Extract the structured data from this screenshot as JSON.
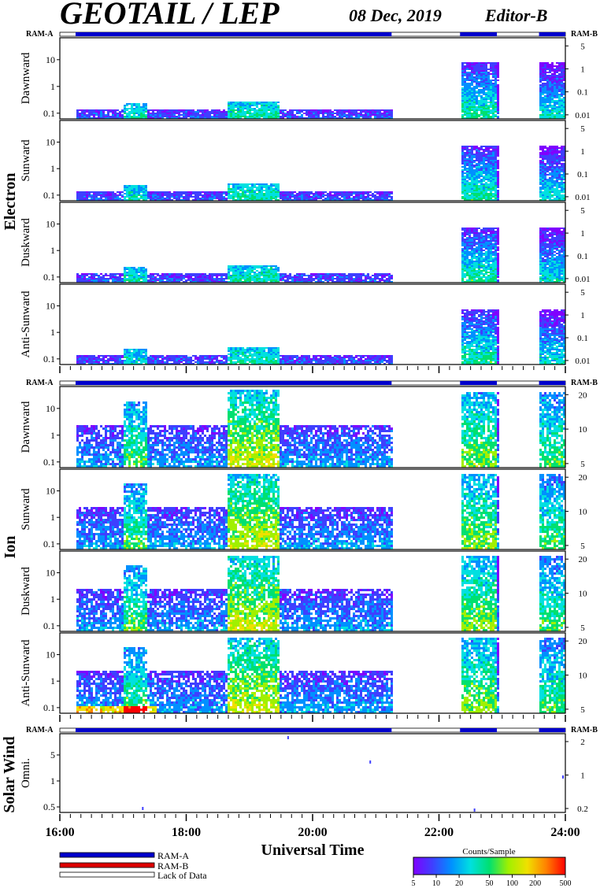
{
  "header": {
    "title": "GEOTAIL / LEP",
    "date": "08 Dec, 2019",
    "editor": "Editor-B"
  },
  "ram_labels": {
    "left": "RAM-A",
    "right": "RAM-B"
  },
  "groups": {
    "electron": "Electron",
    "ion": "Ion",
    "solar_wind": "Solar Wind"
  },
  "colors": {
    "ram_a": "#0000cc",
    "ram_b": "#dd0000",
    "lack": "#ffffff",
    "scale": [
      "#7f00ff",
      "#3f3fff",
      "#0090ff",
      "#00e0e0",
      "#00e070",
      "#a0f000",
      "#f0e000",
      "#ff8000",
      "#ff0000"
    ]
  },
  "chart_data": {
    "type": "heatmap",
    "xlabel": "Universal Time",
    "x_ticks": [
      "16:00",
      "18:00",
      "20:00",
      "22:00",
      "24:00"
    ],
    "x_range": [
      "16:00",
      "24:00"
    ],
    "data_coverage": [
      {
        "start": "16:15",
        "end": "21:15"
      },
      {
        "start": "22:20",
        "end": "22:55"
      },
      {
        "start": "23:35",
        "end": "24:00"
      }
    ],
    "panels": [
      {
        "group": "electron",
        "label": "Dawnward",
        "yticks_left": [
          "10",
          "1",
          "0.1"
        ],
        "yticks_right": [
          "5",
          "1",
          "0.1",
          "0.01"
        ]
      },
      {
        "group": "electron",
        "label": "Sunward",
        "yticks_left": [
          "10",
          "1",
          "0.1"
        ],
        "yticks_right": [
          "5",
          "1",
          "0.1",
          "0.01"
        ]
      },
      {
        "group": "electron",
        "label": "Duskward",
        "yticks_left": [
          "10",
          "1",
          "0.1"
        ],
        "yticks_right": [
          "5",
          "1",
          "0.1",
          "0.01"
        ]
      },
      {
        "group": "electron",
        "label": "Anti-Sunward",
        "yticks_left": [
          "10",
          "1",
          "0.1"
        ],
        "yticks_right": [
          "5",
          "1",
          "0.1",
          "0.01"
        ]
      },
      {
        "group": "ion",
        "label": "Dawnward",
        "yticks_left": [
          "10",
          "1",
          "0.1"
        ],
        "yticks_right": [
          "20",
          "10",
          "5"
        ]
      },
      {
        "group": "ion",
        "label": "Sunward",
        "yticks_left": [
          "10",
          "1",
          "0.1"
        ],
        "yticks_right": [
          "20",
          "10",
          "5"
        ]
      },
      {
        "group": "ion",
        "label": "Duskward",
        "yticks_left": [
          "10",
          "1",
          "0.1"
        ],
        "yticks_right": [
          "20",
          "10",
          "5"
        ]
      },
      {
        "group": "ion",
        "label": "Anti-Sunward",
        "yticks_left": [
          "10",
          "1",
          "0.1"
        ],
        "yticks_right": [
          "20",
          "10",
          "5"
        ]
      },
      {
        "group": "solar_wind",
        "label": "Omni.",
        "yticks_left": [
          "5",
          "1",
          "0.5"
        ],
        "yticks_right": [
          "2",
          "1",
          "0.2"
        ]
      }
    ],
    "legend": {
      "items": [
        "RAM-A",
        "RAM-B",
        "Lack of Data"
      ],
      "colorbar_title": "Counts/Sample",
      "colorbar_ticks": [
        "5",
        "10",
        "20",
        "50",
        "100",
        "200",
        "500"
      ]
    }
  }
}
